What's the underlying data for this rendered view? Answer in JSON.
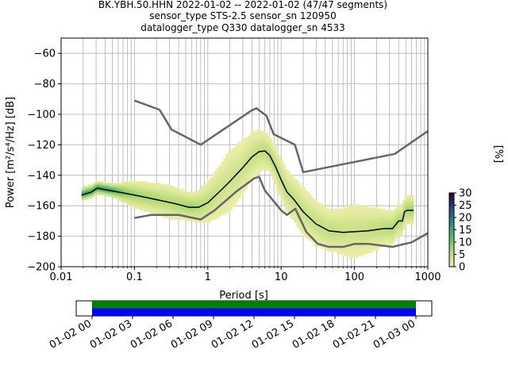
{
  "header": {
    "line1": "BK.YBH.50.HHN   2022-01-02 -- 2022-01-02  (47/47 segments)",
    "line2": "sensor_type STS-2.5 sensor_sn 120950",
    "line3": "datalogger_type Q330 datalogger_sn 4533"
  },
  "colors": {
    "model_curves": "#666666",
    "mean_curve": "#000000",
    "grid": "#b0b0b0",
    "coverage_top": "#008000",
    "coverage_bottom": "#0000ff"
  },
  "chart_data": [
    {
      "type": "heatmap",
      "title": "",
      "xlabel": "Period [s]",
      "ylabel": "Power [m²/s⁴/Hz] [dB]",
      "x_scale": "log",
      "xlim": [
        0.01,
        1000
      ],
      "ylim": [
        -200,
        -50
      ],
      "x_ticks": [
        {
          "value": 0.01,
          "label": "0.01"
        },
        {
          "value": 0.1,
          "label": "0.1"
        },
        {
          "value": 1,
          "label": "1"
        },
        {
          "value": 10,
          "label": "10"
        },
        {
          "value": 100,
          "label": "100"
        },
        {
          "value": 1000,
          "label": "1000"
        }
      ],
      "y_ticks": [
        {
          "value": -60,
          "label": "−60"
        },
        {
          "value": -80,
          "label": "−80"
        },
        {
          "value": -100,
          "label": "−100"
        },
        {
          "value": -120,
          "label": "−120"
        },
        {
          "value": -140,
          "label": "−140"
        },
        {
          "value": -160,
          "label": "−160"
        },
        {
          "value": -180,
          "label": "−180"
        },
        {
          "value": -200,
          "label": "−200"
        }
      ],
      "grid": true,
      "colorbar": {
        "label": "[%]",
        "min": 0,
        "max": 30,
        "ticks": [
          {
            "value": 0,
            "label": "0"
          },
          {
            "value": 5,
            "label": "5"
          },
          {
            "value": 10,
            "label": "10"
          },
          {
            "value": 15,
            "label": "15"
          },
          {
            "value": 20,
            "label": "20"
          },
          {
            "value": 25,
            "label": "25"
          },
          {
            "value": 30,
            "label": "30"
          }
        ]
      },
      "high_noise_model": [
        [
          0.1,
          -91
        ],
        [
          0.22,
          -97
        ],
        [
          0.32,
          -110
        ],
        [
          0.8,
          -120
        ],
        [
          3.8,
          -98
        ],
        [
          4.6,
          -96
        ],
        [
          6.3,
          -101
        ],
        [
          7.9,
          -113
        ],
        [
          15.4,
          -120
        ],
        [
          20,
          -138
        ],
        [
          354,
          -126
        ],
        [
          1000,
          -111
        ]
      ],
      "low_noise_model": [
        [
          0.1,
          -168
        ],
        [
          0.17,
          -166
        ],
        [
          0.4,
          -166
        ],
        [
          0.8,
          -169
        ],
        [
          1.24,
          -163
        ],
        [
          2.4,
          -151
        ],
        [
          4.3,
          -142
        ],
        [
          5,
          -141
        ],
        [
          6,
          -150
        ],
        [
          10,
          -163
        ],
        [
          12,
          -166
        ],
        [
          15.6,
          -162
        ],
        [
          21.9,
          -177
        ],
        [
          31.6,
          -185
        ],
        [
          45,
          -187
        ],
        [
          70,
          -187
        ],
        [
          101,
          -185
        ],
        [
          154,
          -185
        ],
        [
          328,
          -187
        ],
        [
          600,
          -184
        ],
        [
          1000,
          -178
        ]
      ],
      "mean_psd": [
        [
          0.019,
          -153
        ],
        [
          0.026,
          -151
        ],
        [
          0.031,
          -148.5
        ],
        [
          0.04,
          -149.5
        ],
        [
          0.06,
          -151
        ],
        [
          0.1,
          -153
        ],
        [
          0.2,
          -156
        ],
        [
          0.35,
          -158.5
        ],
        [
          0.55,
          -161
        ],
        [
          0.75,
          -161
        ],
        [
          1.0,
          -158
        ],
        [
          1.5,
          -150
        ],
        [
          2.0,
          -144
        ],
        [
          3.0,
          -135
        ],
        [
          4.0,
          -128
        ],
        [
          5.0,
          -124.5
        ],
        [
          6.0,
          -124
        ],
        [
          7.0,
          -127
        ],
        [
          8.5,
          -135
        ],
        [
          10,
          -143
        ],
        [
          12,
          -151
        ],
        [
          15,
          -156
        ],
        [
          20,
          -164
        ],
        [
          30,
          -172
        ],
        [
          45,
          -176.5
        ],
        [
          70,
          -177.5
        ],
        [
          100,
          -177
        ],
        [
          150,
          -176.5
        ],
        [
          250,
          -175
        ],
        [
          330,
          -175
        ],
        [
          400,
          -170
        ],
        [
          450,
          -170
        ],
        [
          480,
          -164
        ],
        [
          520,
          -163
        ],
        [
          640,
          -163
        ]
      ],
      "density_spread": [
        [
          0.019,
          2
        ],
        [
          0.05,
          2
        ],
        [
          0.1,
          4
        ],
        [
          0.3,
          5
        ],
        [
          0.6,
          4
        ],
        [
          1,
          6
        ],
        [
          2,
          9
        ],
        [
          4,
          7
        ],
        [
          7,
          5
        ],
        [
          10,
          6
        ],
        [
          20,
          7
        ],
        [
          50,
          6
        ],
        [
          100,
          8
        ],
        [
          300,
          5
        ],
        [
          640,
          4
        ]
      ]
    },
    {
      "type": "timeline",
      "xlabel": "",
      "tick_labels": [
        "01-02 00",
        "01-02 03",
        "01-02 06",
        "01-02 09",
        "01-02 12",
        "01-02 15",
        "01-02 18",
        "01-02 21",
        "01-03 00"
      ],
      "series": [
        {
          "coverage": [
            0,
            24
          ]
        },
        {
          "coverage": [
            0,
            24
          ]
        }
      ]
    }
  ]
}
